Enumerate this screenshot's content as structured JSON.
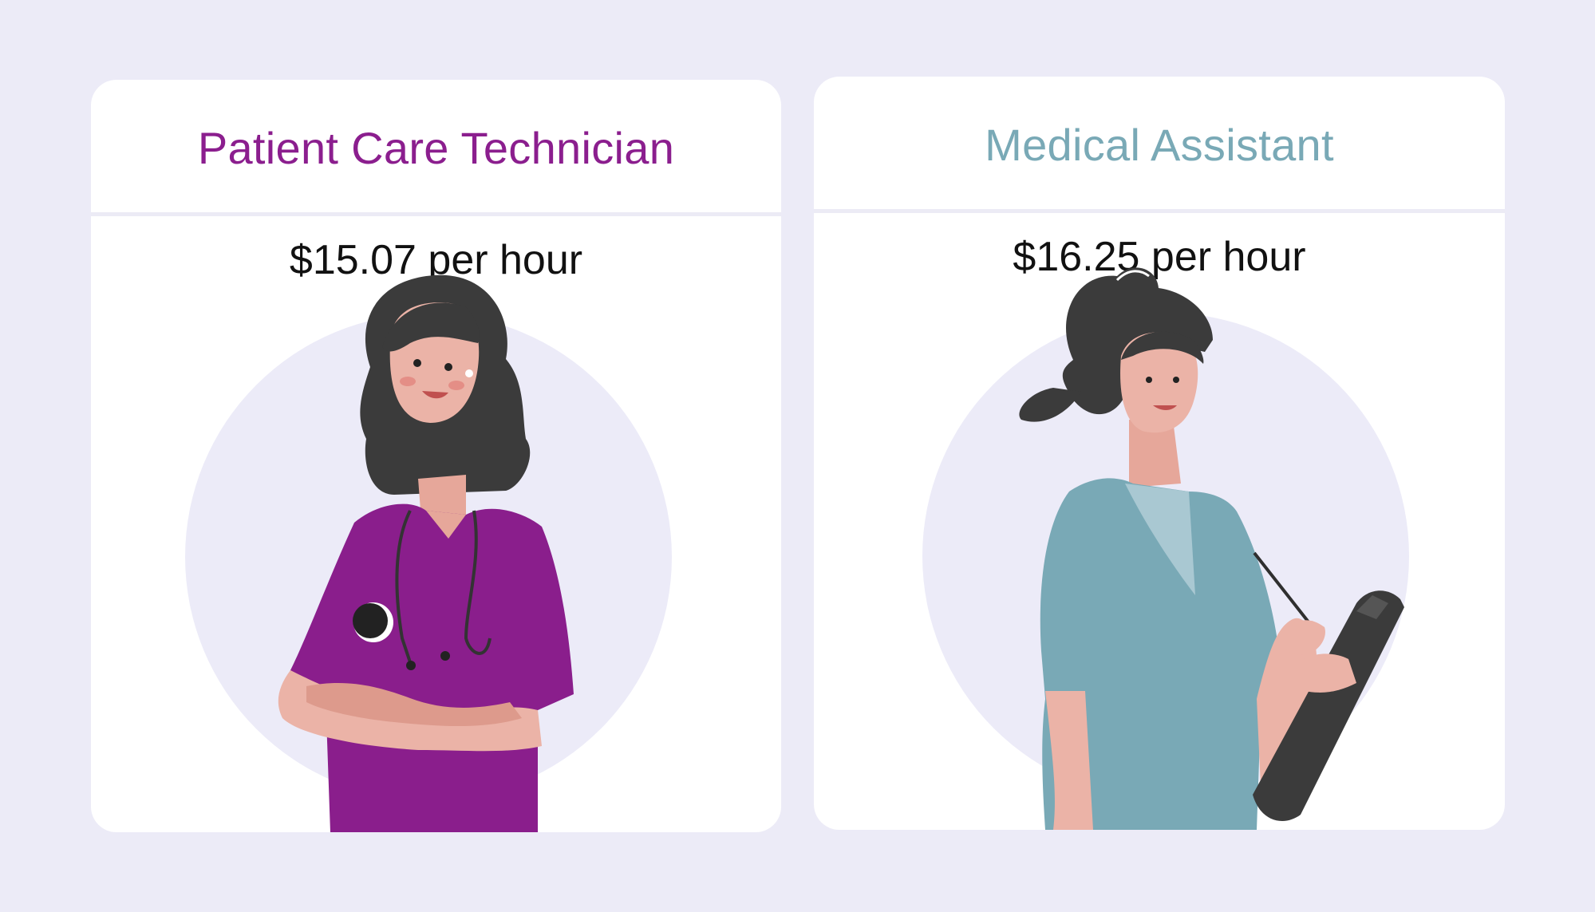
{
  "cards": [
    {
      "title": "Patient Care Technician",
      "rate": "$15.07 per hour",
      "title_color": "#8b1e8e",
      "scrub_color": "#8a1e8c"
    },
    {
      "title": "Medical Assistant",
      "rate": "$16.25 per hour",
      "title_color": "#79a9b6",
      "scrub_color": "#79a9b6"
    }
  ],
  "illustrations": [
    "nurse-with-stethoscope-illustration",
    "assistant-with-clipboard-illustration"
  ]
}
